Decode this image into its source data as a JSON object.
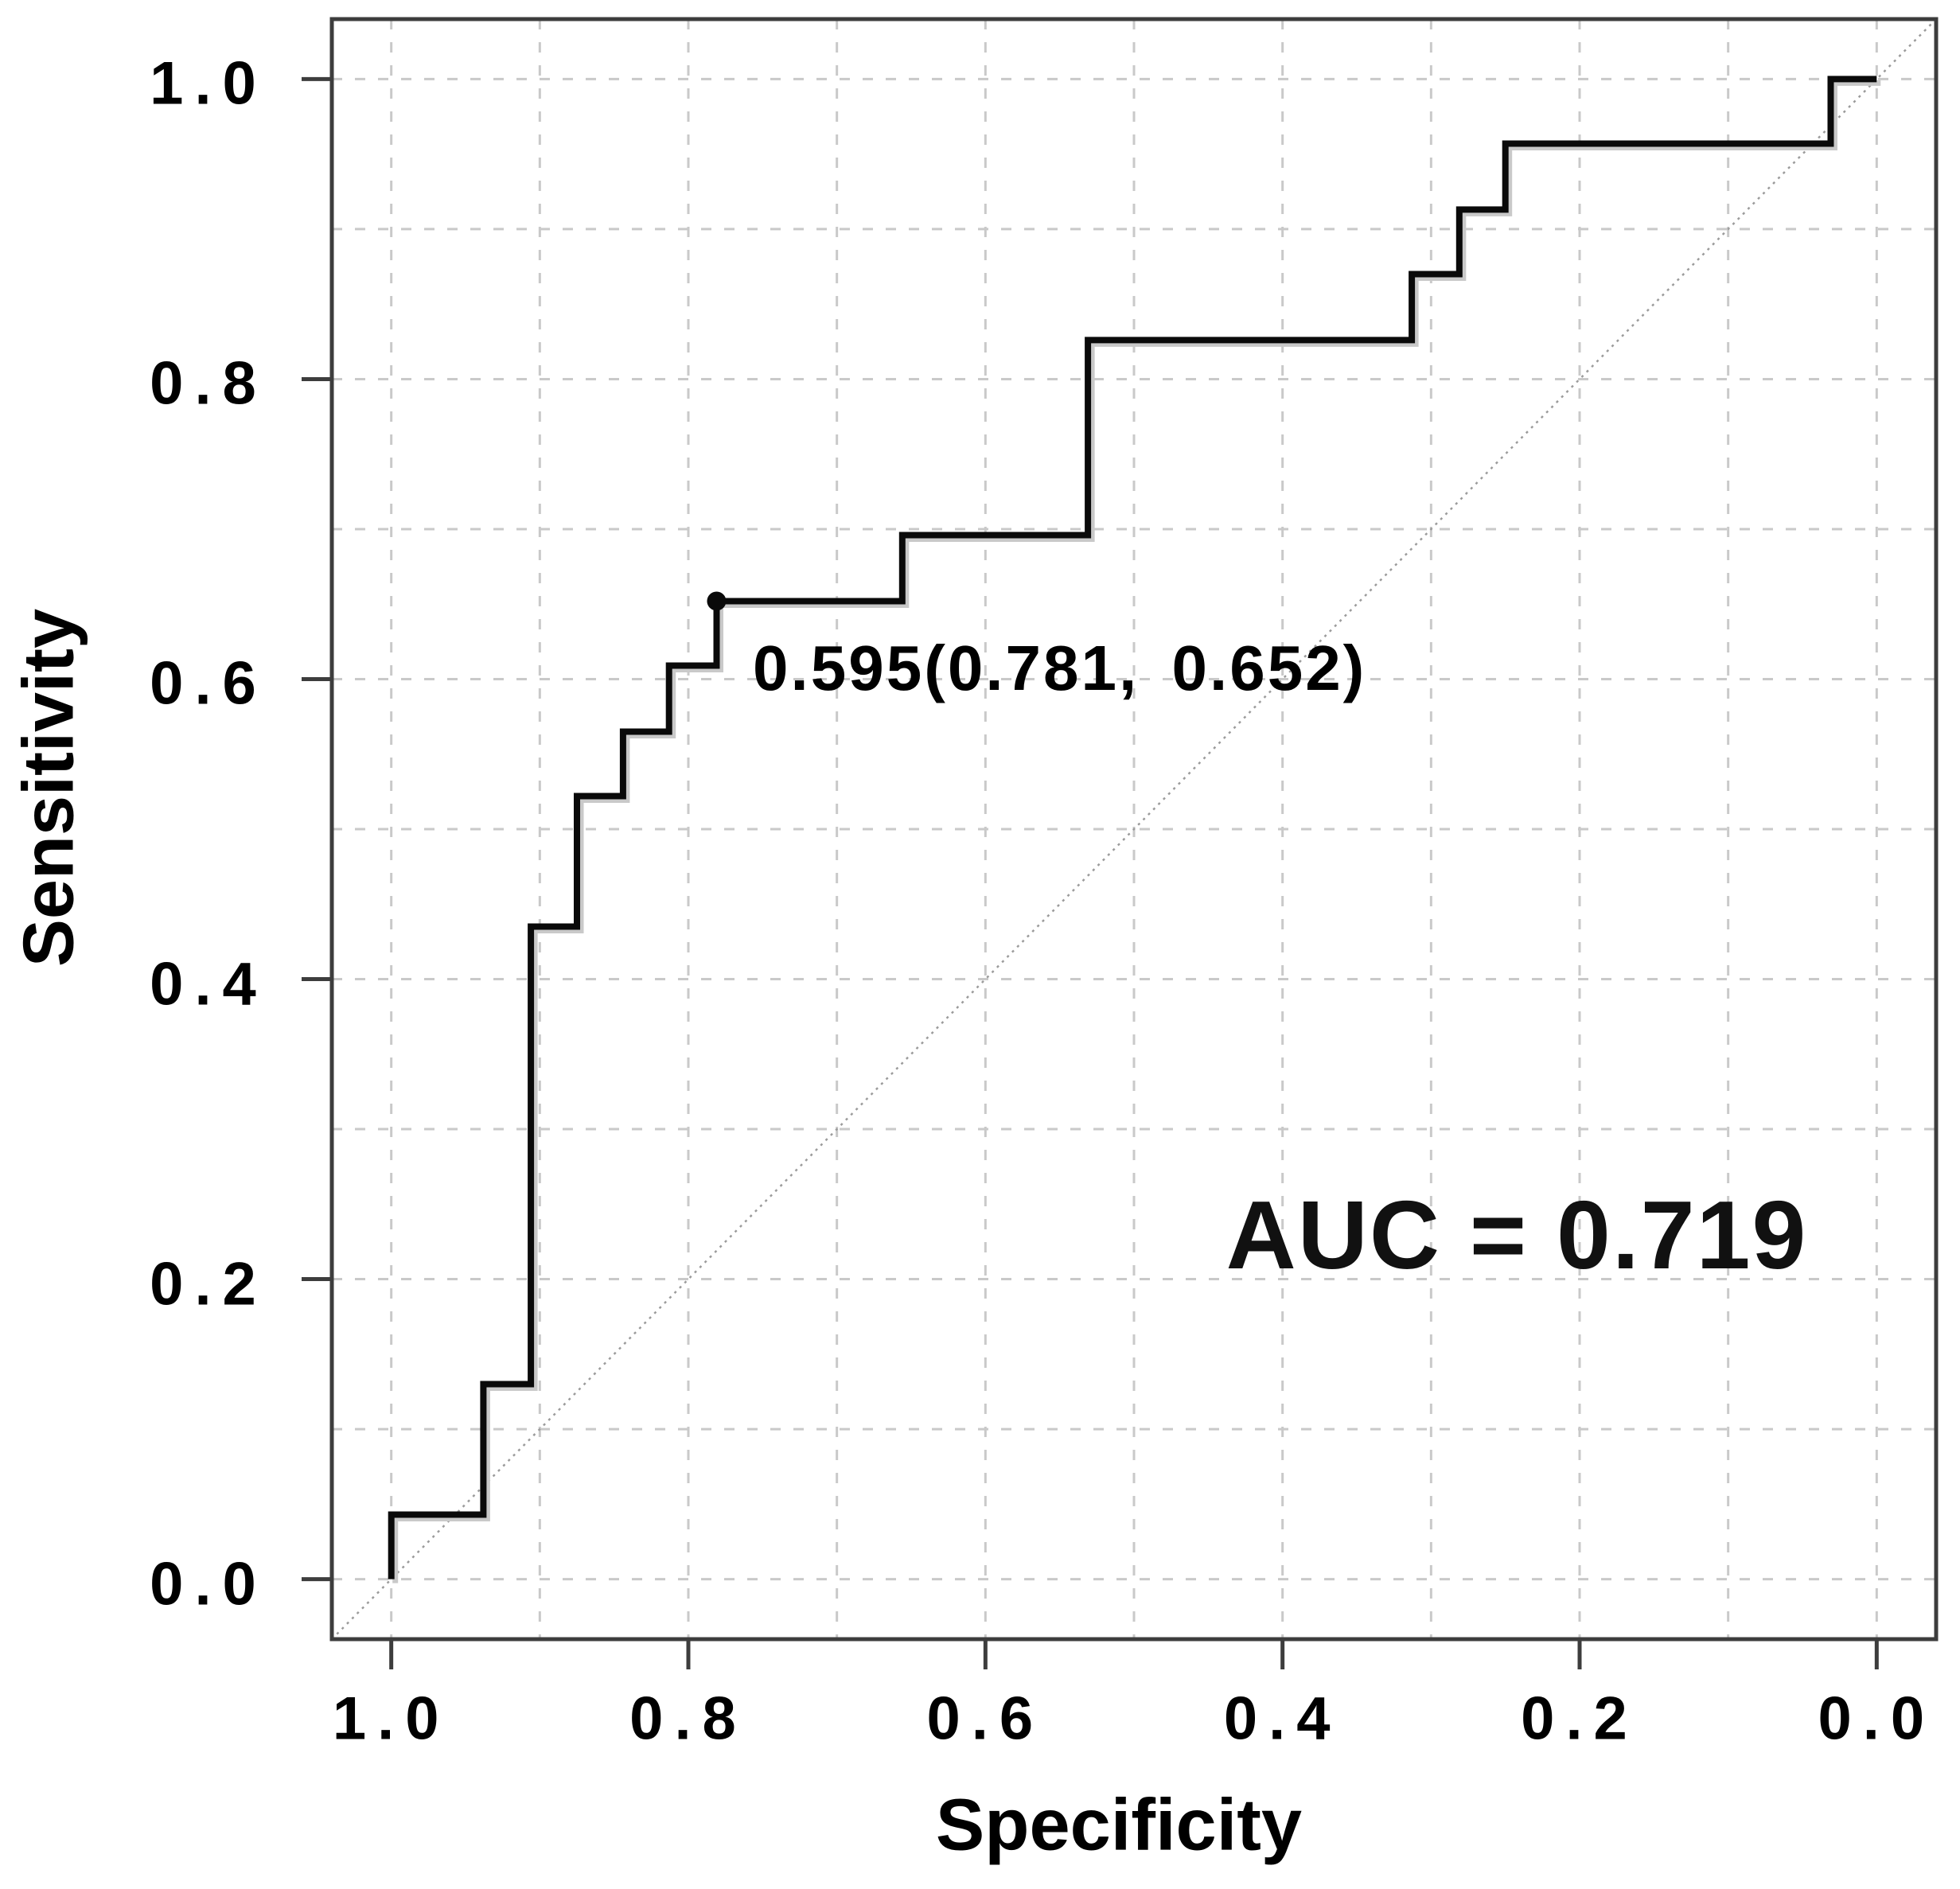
{
  "figure": {
    "background": "#ffffff"
  },
  "chart_data": {
    "type": "line",
    "subtype": "roc-step-curve",
    "title": "",
    "xlabel": "Specificity",
    "ylabel": "Sensitivity",
    "x_axis_reversed": true,
    "xlim": [
      1.04,
      -0.04
    ],
    "ylim": [
      -0.04,
      1.04
    ],
    "x_ticks": [
      "1.0",
      "0.8",
      "0.6",
      "0.4",
      "0.2",
      "0.0"
    ],
    "x_tick_values": [
      1.0,
      0.8,
      0.6,
      0.4,
      0.2,
      0.0
    ],
    "y_ticks": [
      "1.0",
      "0.8",
      "0.6",
      "0.4",
      "0.2",
      "0.0"
    ],
    "y_tick_values": [
      1.0,
      0.8,
      0.6,
      0.4,
      0.2,
      0.0
    ],
    "grid": {
      "on": true,
      "step": 0.1,
      "style": "dashed"
    },
    "diagonal_reference": true,
    "legend_position": "none",
    "series": [
      {
        "name": "ROC curve",
        "points_spec_sens": [
          [
            1.0,
            0.0
          ],
          [
            1.0,
            0.043
          ],
          [
            0.938,
            0.043
          ],
          [
            0.938,
            0.13
          ],
          [
            0.906,
            0.13
          ],
          [
            0.906,
            0.435
          ],
          [
            0.875,
            0.435
          ],
          [
            0.875,
            0.522
          ],
          [
            0.844,
            0.522
          ],
          [
            0.844,
            0.565
          ],
          [
            0.813,
            0.565
          ],
          [
            0.813,
            0.609
          ],
          [
            0.781,
            0.609
          ],
          [
            0.781,
            0.652
          ],
          [
            0.656,
            0.652
          ],
          [
            0.656,
            0.696
          ],
          [
            0.531,
            0.696
          ],
          [
            0.531,
            0.826
          ],
          [
            0.313,
            0.826
          ],
          [
            0.313,
            0.87
          ],
          [
            0.281,
            0.87
          ],
          [
            0.281,
            0.913
          ],
          [
            0.25,
            0.913
          ],
          [
            0.25,
            0.957
          ],
          [
            0.031,
            0.957
          ],
          [
            0.031,
            1.0
          ],
          [
            0.0,
            1.0
          ]
        ]
      }
    ],
    "cutoff_point": {
      "threshold": 0.595,
      "specificity": 0.781,
      "sensitivity": 0.652,
      "label": "0.595(0.781, 0.652)"
    },
    "auc": 0.719,
    "auc_label": "AUC = 0.719",
    "colors": {
      "curve": "#0a0a0a",
      "curve_shadow": "#c9c9c9",
      "grid": "#c9c9c9",
      "diagonal": "#9b9b9b",
      "axis": "#3d3d3d",
      "text": "#000000"
    }
  }
}
